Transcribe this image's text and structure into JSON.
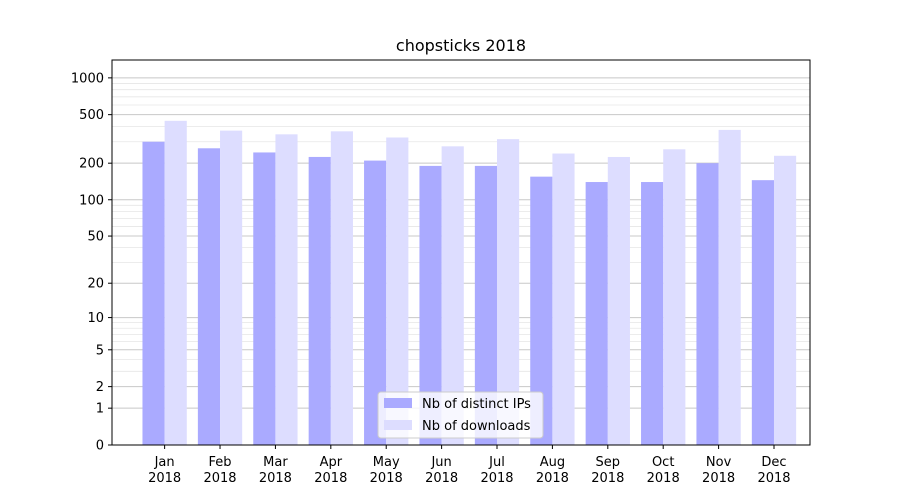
{
  "chart_data": {
    "type": "bar",
    "title": "chopsticks 2018",
    "xlabel": "",
    "ylabel": "",
    "yscale": "symlog",
    "ylim": [
      0,
      1400
    ],
    "yticks": [
      0,
      1,
      2,
      5,
      10,
      20,
      50,
      100,
      200,
      500,
      1000
    ],
    "ytick_labels": [
      "0",
      "1",
      "2",
      "5",
      "10",
      "20",
      "50",
      "100",
      "200",
      "500",
      "1000"
    ],
    "grid": true,
    "legend_position": "lower center",
    "categories": [
      "Jan\n2018",
      "Feb\n2018",
      "Mar\n2018",
      "Apr\n2018",
      "May\n2018",
      "Jun\n2018",
      "Jul\n2018",
      "Aug\n2018",
      "Sep\n2018",
      "Oct\n2018",
      "Nov\n2018",
      "Dec\n2018"
    ],
    "series": [
      {
        "name": "Nb of distinct IPs",
        "color": "#aaaaff",
        "values": [
          300,
          265,
          245,
          225,
          210,
          190,
          190,
          155,
          140,
          140,
          200,
          145
        ]
      },
      {
        "name": "Nb of downloads",
        "color": "#ddddff",
        "values": [
          445,
          370,
          345,
          365,
          325,
          275,
          315,
          240,
          225,
          260,
          375,
          230
        ]
      }
    ]
  }
}
